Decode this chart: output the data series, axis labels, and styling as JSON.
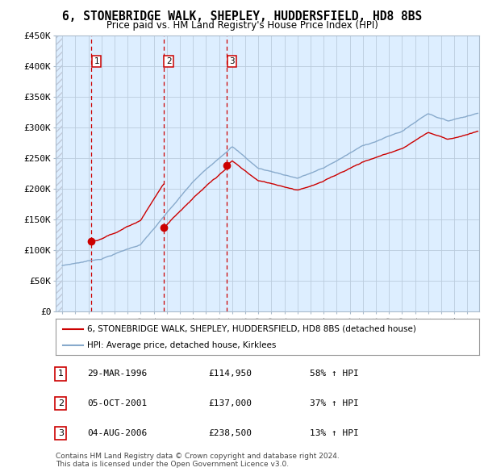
{
  "title": "6, STONEBRIDGE WALK, SHEPLEY, HUDDERSFIELD, HD8 8BS",
  "subtitle": "Price paid vs. HM Land Registry's House Price Index (HPI)",
  "ylim": [
    0,
    450000
  ],
  "yticks": [
    0,
    50000,
    100000,
    150000,
    200000,
    250000,
    300000,
    350000,
    400000,
    450000
  ],
  "ytick_labels": [
    "£0",
    "£50K",
    "£100K",
    "£150K",
    "£200K",
    "£250K",
    "£300K",
    "£350K",
    "£400K",
    "£450K"
  ],
  "sale_color": "#cc0000",
  "hpi_color": "#88aacc",
  "sale_label": "6, STONEBRIDGE WALK, SHEPLEY, HUDDERSFIELD, HD8 8BS (detached house)",
  "hpi_label": "HPI: Average price, detached house, Kirklees",
  "sales": [
    {
      "date_num": 1996.24,
      "price": 114950,
      "label": "1",
      "date_str": "29-MAR-1996",
      "pct": "58%"
    },
    {
      "date_num": 2001.76,
      "price": 137000,
      "label": "2",
      "date_str": "05-OCT-2001",
      "pct": "37%"
    },
    {
      "date_num": 2006.59,
      "price": 238500,
      "label": "3",
      "date_str": "04-AUG-2006",
      "pct": "13%"
    }
  ],
  "footnote1": "Contains HM Land Registry data © Crown copyright and database right 2024.",
  "footnote2": "This data is licensed under the Open Government Licence v3.0.",
  "xlim_left": 1993.5,
  "xlim_right": 2025.9,
  "x_years_start": 1994,
  "x_years_end": 2025,
  "plot_bg": "#ddeeff",
  "fig_bg": "#ffffff",
  "grid_color": "#bbccdd",
  "hatch_color": "#c0c8d8"
}
